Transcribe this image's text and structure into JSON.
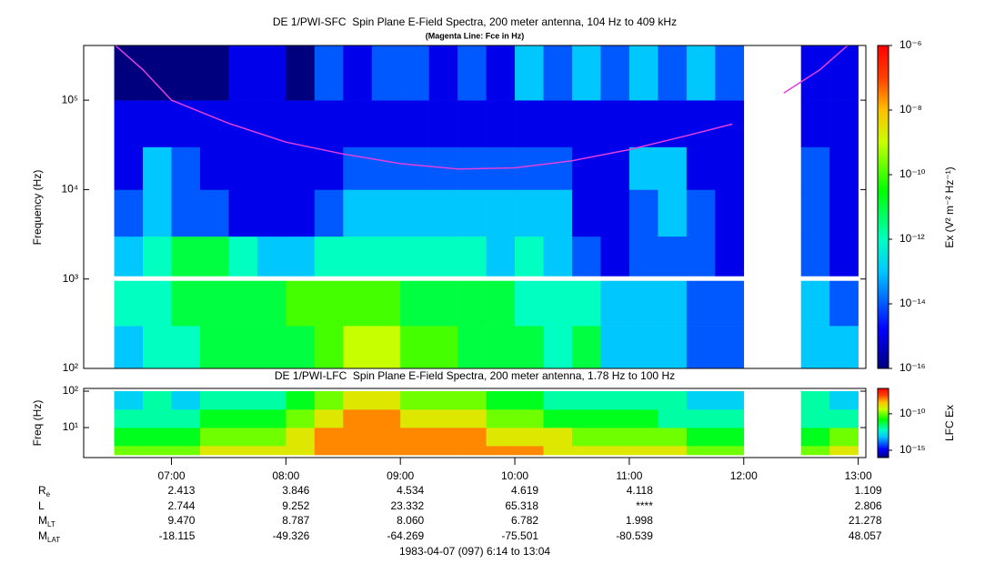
{
  "chart_data": [
    {
      "type": "heatmap",
      "title": "DE 1/PWI-SFC  Spin Plane E-Field Spectra, 200 meter antenna, 104 Hz to 409 kHz",
      "subtitle": "(Magenta Line: Fce in Hz)",
      "ylabel": "Frequency (Hz)",
      "log_y": true,
      "xlim": [
        374,
        784
      ],
      "ylim": [
        100,
        409000
      ],
      "yticks": [
        {
          "value": 100,
          "label": "10²"
        },
        {
          "value": 1000,
          "label": "10³"
        },
        {
          "value": 10000,
          "label": "10⁴"
        },
        {
          "value": 100000,
          "label": "10⁵"
        }
      ],
      "x_bins": [
        390,
        405,
        420,
        435,
        450,
        465,
        480,
        495,
        510,
        525,
        540,
        555,
        570,
        585,
        600,
        615,
        630,
        645,
        660,
        675,
        690,
        705,
        720,
        735,
        750,
        765,
        780
      ],
      "y_bins": [
        100,
        300,
        1000,
        3000,
        10000,
        30000,
        100000,
        409000
      ],
      "values": [
        [
          1e-13,
          1e-12,
          1e-12,
          1e-11,
          1e-11,
          1e-11,
          1e-11,
          1e-10,
          1e-09,
          1e-09,
          1e-10,
          1e-10,
          1e-11,
          1e-11,
          1e-11,
          1e-12,
          1e-11,
          1e-13,
          1e-13,
          1e-13,
          1e-14,
          1e-14,
          null,
          null,
          1e-13,
          1e-13
        ],
        [
          1e-12,
          1e-12,
          1e-11,
          1e-11,
          1e-11,
          1e-11,
          1e-10,
          1e-10,
          1e-10,
          1e-10,
          1e-11,
          1e-11,
          1e-11,
          1e-11,
          1e-12,
          1e-12,
          1e-12,
          1e-13,
          1e-13,
          1e-13,
          1e-14,
          1e-14,
          null,
          null,
          1e-13,
          1e-14
        ],
        [
          1e-13,
          1e-12,
          1e-11,
          1e-11,
          1e-12,
          1e-13,
          1e-13,
          1e-12,
          1e-12,
          1e-12,
          1e-12,
          1e-12,
          1e-12,
          1e-13,
          1e-12,
          1e-13,
          1e-14,
          1e-15,
          1e-14,
          1e-14,
          1e-14,
          1e-15,
          null,
          null,
          1e-14,
          1e-15
        ],
        [
          1e-14,
          1e-13,
          1e-14,
          1e-14,
          1e-15,
          1e-15,
          1e-15,
          1e-14,
          1e-13,
          1e-13,
          1e-13,
          1e-13,
          1e-13,
          1e-13,
          1e-13,
          1e-13,
          1e-15,
          1e-15,
          1e-14,
          1e-13,
          1e-14,
          1e-15,
          null,
          null,
          1e-14,
          1e-15
        ],
        [
          1e-15,
          1e-13,
          1e-14,
          1e-15,
          1e-15,
          1e-15,
          1e-15,
          1e-15,
          1e-14,
          1e-14,
          1e-14,
          1e-14,
          1e-14,
          1e-14,
          1e-14,
          1e-14,
          1e-15,
          1e-15,
          1e-13,
          1e-13,
          1e-15,
          1e-15,
          null,
          null,
          1e-14,
          1e-15
        ],
        [
          1e-15,
          1e-15,
          1e-15,
          1e-15,
          1e-15,
          1e-15,
          1e-15,
          1e-15,
          1e-15,
          1e-15,
          1e-15,
          1e-15,
          1e-15,
          1e-15,
          1e-15,
          1e-15,
          1e-15,
          1e-15,
          1e-15,
          1e-15,
          1e-15,
          1e-15,
          null,
          null,
          1e-15,
          1e-15
        ],
        [
          1e-16,
          1e-16,
          1e-16,
          1e-16,
          1e-15,
          1e-15,
          1e-16,
          1e-14,
          1e-15,
          1e-14,
          1e-14,
          1e-15,
          1e-14,
          1e-15,
          1e-13,
          1e-14,
          1e-13,
          1e-14,
          1e-13,
          1e-14,
          1e-13,
          1e-14,
          null,
          null,
          1e-15,
          1e-15
        ]
      ],
      "colorbar": {
        "label": "Ex (V² m⁻² Hz⁻¹)",
        "lim": [
          1e-16,
          1e-06
        ],
        "ticks": [
          {
            "value": 1e-06,
            "label": "10⁻⁶"
          },
          {
            "value": 1e-08,
            "label": "10⁻⁸"
          },
          {
            "value": 1e-10,
            "label": "10⁻¹⁰"
          },
          {
            "value": 1e-12,
            "label": "10⁻¹²"
          },
          {
            "value": 1e-14,
            "label": "10⁻¹⁴"
          },
          {
            "value": 1e-16,
            "label": "10⁻¹⁶"
          }
        ]
      },
      "fce": {
        "color": "#e040e0",
        "x": [
          390,
          405,
          420,
          450,
          480,
          510,
          540,
          570,
          600,
          630,
          660,
          690,
          714,
          null,
          741,
          760,
          775
        ],
        "y": [
          420000,
          220000,
          100000,
          55000,
          34000,
          25000,
          19500,
          17000,
          17500,
          21000,
          28000,
          40000,
          54000,
          null,
          120000,
          220000,
          420000
        ]
      }
    },
    {
      "type": "heatmap",
      "title": "DE 1/PWI-LFC  Spin Plane E-Field Spectra, 200 meter antenna, 1.78 Hz to 100 Hz",
      "ylabel": "Freq (Hz)",
      "log_y": true,
      "xlim": [
        374,
        784
      ],
      "ylim": [
        1.5,
        119
      ],
      "yticks": [
        {
          "value": 10,
          "label": "10¹"
        },
        {
          "value": 100,
          "label": "10²"
        }
      ],
      "xticks": [
        {
          "value": 420,
          "label": "07:00"
        },
        {
          "value": 480,
          "label": "08:00"
        },
        {
          "value": 540,
          "label": "09:00"
        },
        {
          "value": 600,
          "label": "10:00"
        },
        {
          "value": 660,
          "label": "11:00"
        },
        {
          "value": 720,
          "label": "12:00"
        },
        {
          "value": 780,
          "label": "13:00"
        }
      ],
      "x_bins": [
        390,
        405,
        420,
        435,
        450,
        465,
        480,
        495,
        510,
        525,
        540,
        555,
        570,
        585,
        600,
        615,
        630,
        645,
        660,
        675,
        690,
        705,
        720,
        735,
        750,
        765,
        780
      ],
      "y_bins": [
        1.78,
        3.16,
        10,
        31.6,
        100
      ],
      "values": [
        [
          1e-10,
          1e-10,
          1e-10,
          1e-09,
          1e-09,
          1e-09,
          1e-09,
          1e-08,
          1e-08,
          1e-08,
          1e-08,
          1e-08,
          1e-08,
          1e-08,
          1e-08,
          1e-09,
          1e-09,
          1e-09,
          1e-09,
          1e-09,
          1e-10,
          1e-10,
          null,
          null,
          1e-10,
          1e-09
        ],
        [
          1e-11,
          1e-11,
          1e-11,
          1e-10,
          1e-10,
          1e-10,
          1e-09,
          1e-08,
          1e-08,
          1e-08,
          1e-08,
          1e-08,
          1e-08,
          1e-09,
          1e-09,
          1e-09,
          1e-10,
          1e-10,
          1e-10,
          1e-10,
          1e-11,
          1e-11,
          null,
          null,
          1e-11,
          1e-10
        ],
        [
          1e-12,
          1e-12,
          1e-12,
          1e-11,
          1e-11,
          1e-11,
          1e-10,
          1e-09,
          1e-08,
          1e-08,
          1e-09,
          1e-09,
          1e-09,
          1e-10,
          1e-10,
          1e-11,
          1e-11,
          1e-11,
          1e-11,
          1e-12,
          1e-12,
          1e-12,
          null,
          null,
          1e-12,
          1e-12
        ],
        [
          1e-13,
          1e-12,
          1e-13,
          1e-12,
          1e-12,
          1e-12,
          1e-11,
          1e-10,
          1e-09,
          1e-09,
          1e-10,
          1e-10,
          1e-10,
          1e-11,
          1e-11,
          1e-12,
          1e-12,
          1e-12,
          1e-12,
          1e-12,
          1e-13,
          1e-13,
          null,
          null,
          1e-12,
          1e-13
        ]
      ],
      "colorbar": {
        "label": "LFC Ex",
        "lim": [
          1e-16,
          3e-07
        ],
        "ticks": [
          {
            "value": 1e-10,
            "label": "10⁻¹⁰"
          },
          {
            "value": 1e-15,
            "label": "10⁻¹⁵"
          }
        ]
      }
    }
  ],
  "ephemeris": [
    {
      "label": "R",
      "sub": "e",
      "values": [
        "2.413",
        "3.846",
        "4.534",
        "4.619",
        "4.118",
        null,
        "1.109"
      ]
    },
    {
      "label": "L",
      "values": [
        "2.744",
        "9.252",
        "23.332",
        "65.318",
        "****",
        null,
        "2.806"
      ]
    },
    {
      "label": "M",
      "sub": "LT",
      "values": [
        "9.470",
        "8.787",
        "8.060",
        "6.782",
        "1.998",
        null,
        "21.278"
      ]
    },
    {
      "label": "M",
      "sub": "LAT",
      "values": [
        "-18.115",
        "-49.326",
        "-64.269",
        "-75.501",
        "-80.539",
        null,
        "48.057"
      ]
    }
  ],
  "footer": "1983-04-07 (097) 6:14 to 13:04"
}
